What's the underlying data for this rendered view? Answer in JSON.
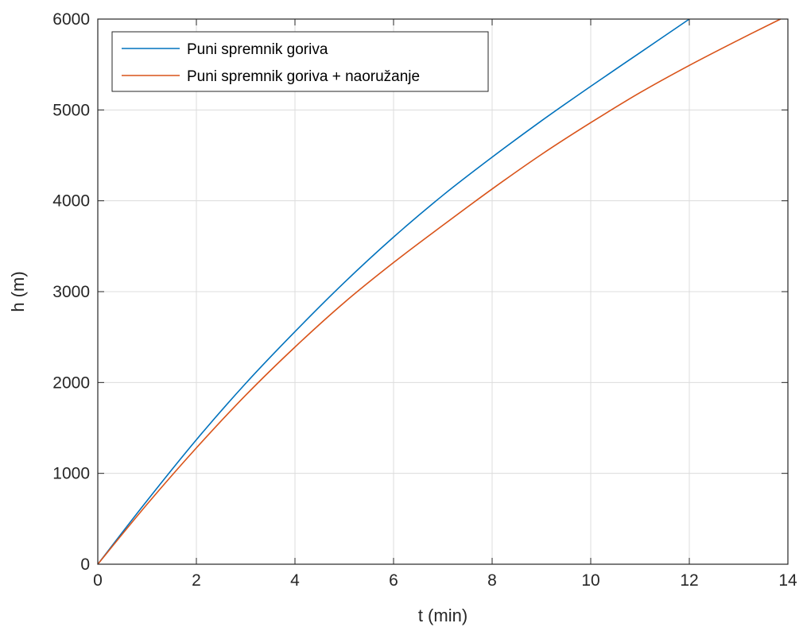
{
  "chart_data": {
    "type": "line",
    "title": "",
    "xlabel": "t (min)",
    "ylabel": "h (m)",
    "xlim": [
      0,
      14
    ],
    "ylim": [
      0,
      6000
    ],
    "xticks": [
      0,
      2,
      4,
      6,
      8,
      10,
      12,
      14
    ],
    "yticks": [
      0,
      1000,
      2000,
      3000,
      4000,
      5000,
      6000
    ],
    "grid": true,
    "legend_position": "top-left",
    "series": [
      {
        "name": "Puni spremnik goriva",
        "color": "#0072BD",
        "x": [
          0,
          1,
          2,
          3,
          4,
          5,
          6,
          7,
          8,
          9,
          10,
          11,
          12
        ],
        "y": [
          0,
          700,
          1370,
          1990,
          2560,
          3100,
          3600,
          4060,
          4480,
          4880,
          5260,
          5630,
          6000
        ]
      },
      {
        "name": "Puni spremnik goriva + naoružanje",
        "color": "#D95319",
        "x": [
          0,
          1,
          2,
          3,
          4,
          5,
          6,
          7,
          8,
          9,
          10,
          11,
          12,
          13,
          13.85
        ],
        "y": [
          0,
          660,
          1280,
          1860,
          2390,
          2880,
          3320,
          3730,
          4130,
          4510,
          4860,
          5190,
          5490,
          5770,
          6000
        ]
      }
    ]
  }
}
